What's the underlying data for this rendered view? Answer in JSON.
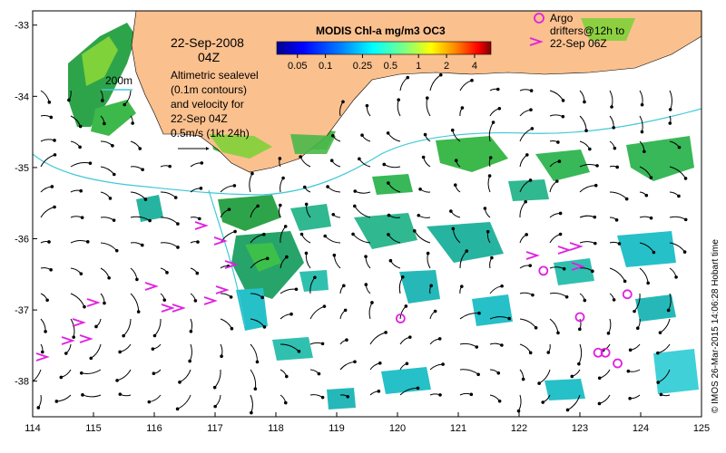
{
  "map": {
    "date_line": "22-Sep-2008",
    "time_line": "04Z",
    "isobath_label": "200m",
    "description_lines": [
      "Altimetric sealevel",
      "(0.1m contours)",
      "and velocity for",
      "22-Sep 04Z",
      "0.5m/s (1kt 24h)"
    ],
    "colorbar": {
      "title": "MODIS Chl-a mg/m3 OC3",
      "tick_labels": [
        "0.05",
        "0.1",
        "0.25",
        "0.5",
        "1",
        "2",
        "4"
      ],
      "colors": [
        "#00008f",
        "#0000ff",
        "#0080ff",
        "#00ffff",
        "#80ff80",
        "#ffff00",
        "#ff8000",
        "#ff0000",
        "#800000"
      ]
    },
    "argo_legend_lines": [
      "Argo",
      "drifters@12h to",
      "22-Sep 06Z"
    ],
    "credit": "© IMOS 26-Mar-2015 14:06:28 Hobart time",
    "x_ticks": [
      "114",
      "115",
      "116",
      "117",
      "118",
      "119",
      "120",
      "121",
      "122",
      "123",
      "124",
      "125"
    ],
    "y_ticks": [
      "-33",
      "-34",
      "-35",
      "-36",
      "-37",
      "-38"
    ],
    "colors": {
      "land": "#fac08e",
      "isobath": "#40c8d8",
      "argo": "#e020e0",
      "arrow": "#000000"
    },
    "argo_floats": [
      {
        "lon": 120.05,
        "lat": -37.12
      },
      {
        "lon": 122.4,
        "lat": -36.45
      },
      {
        "lon": 123.0,
        "lat": -37.1
      },
      {
        "lon": 123.3,
        "lat": -37.6
      },
      {
        "lon": 123.42,
        "lat": -37.6
      },
      {
        "lon": 123.62,
        "lat": -37.75
      },
      {
        "lon": 123.78,
        "lat": -36.78
      }
    ]
  }
}
